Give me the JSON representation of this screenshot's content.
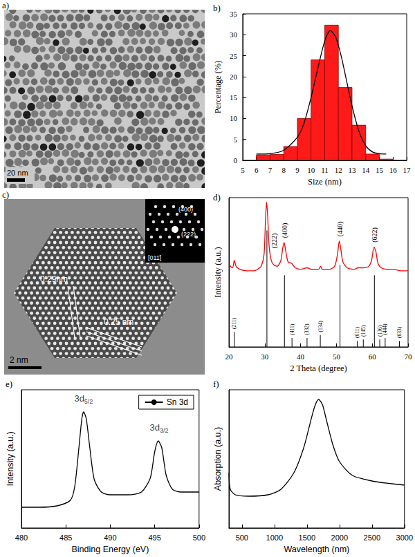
{
  "images": [
    {
      "title": "a)",
      "scale_bar": "20 nm"
    },
    {
      "title": "c)",
      "scale_bar": "2 nm",
      "annotations": [
        "0.29nm",
        "0.25 nm"
      ],
      "inset_labels": [
        "(400)",
        "(222)",
        "[011̄]"
      ]
    }
  ],
  "chart_data": [
    {
      "type": "histogram",
      "title": "b)",
      "x_label": "Size (nm)",
      "y_label": "Percentage (%)",
      "bins": [
        6,
        7,
        8,
        9,
        10,
        11,
        12,
        13,
        14,
        15,
        16
      ],
      "values": [
        1.3,
        1.4,
        3.3,
        10,
        24,
        32.3,
        17.4,
        8.4,
        1.5,
        0.3
      ],
      "color": "#ff1a1a",
      "series": [
        {
          "type": "line",
          "color": "#000000",
          "x": [
            6,
            7,
            8,
            9,
            9.5,
            10,
            10.5,
            11,
            11.4,
            11.8,
            12.2,
            12.6,
            13,
            13.5,
            14,
            14.5,
            15,
            15.5
          ],
          "values": [
            1.5,
            1.6,
            2.4,
            5.5,
            9,
            15,
            22,
            28.5,
            31,
            29.5,
            25,
            19,
            13,
            7,
            3.5,
            2,
            1.6,
            1.5
          ]
        }
      ],
      "xlim": [
        5,
        17
      ],
      "xticks": [
        5,
        6,
        7,
        8,
        9,
        10,
        11,
        12,
        13,
        14,
        15,
        16,
        17
      ],
      "ylim": [
        0,
        35
      ],
      "yticks": [
        0,
        5,
        10,
        15,
        20,
        25,
        30,
        35
      ],
      "grid": false
    },
    {
      "type": "line",
      "title": "d)",
      "x_label": "2 Theta (degree)",
      "y_label": "Intensity (a.u.)",
      "x": [
        20,
        21,
        21.5,
        22,
        23,
        25,
        27,
        28,
        29,
        29.8,
        30.2,
        30.5,
        30.8,
        31.2,
        31.8,
        32.5,
        33.5,
        34.5,
        35,
        35.4,
        35.8,
        36.5,
        37.5,
        38.5,
        40,
        41.8,
        43,
        45,
        45.6,
        46,
        48,
        49.5,
        50.3,
        50.8,
        51.2,
        51.8,
        53,
        55,
        56,
        57.5,
        59,
        59.8,
        60.5,
        61,
        61.6,
        62.5,
        64,
        66,
        68,
        70
      ],
      "values": [
        55,
        53,
        58,
        54,
        52,
        51,
        51,
        52,
        54,
        62,
        85,
        97,
        88,
        68,
        58,
        55,
        54,
        58,
        66,
        70,
        65,
        57,
        56,
        53,
        52,
        53,
        52,
        52,
        54,
        52,
        52,
        54,
        62,
        71,
        66,
        57,
        53,
        52,
        53,
        53,
        54,
        58,
        67,
        64,
        56,
        53,
        52,
        52,
        51,
        51
      ],
      "color": "#ff0000",
      "reference_peaks": [
        {
          "x": 21.5,
          "height": 10,
          "label": "(211)"
        },
        {
          "x": 30.6,
          "height": 78,
          "label": "(222)"
        },
        {
          "x": 35.5,
          "height": 48,
          "label": "(400)"
        },
        {
          "x": 37.6,
          "height": 6,
          "label": "(411)"
        },
        {
          "x": 41.8,
          "height": 6,
          "label": "(332)"
        },
        {
          "x": 45.5,
          "height": 8,
          "label": "(134)"
        },
        {
          "x": 51.0,
          "height": 55,
          "label": "(440)"
        },
        {
          "x": 55.8,
          "height": 4,
          "label": "(611)"
        },
        {
          "x": 57.5,
          "height": 5,
          "label": "(145)"
        },
        {
          "x": 60.6,
          "height": 48,
          "label": "(622)"
        },
        {
          "x": 62.1,
          "height": 5,
          "label": "(136)"
        },
        {
          "x": 63.6,
          "height": 6,
          "label": "(444)"
        },
        {
          "x": 67.6,
          "height": 4,
          "label": "(633)"
        }
      ],
      "xlim": [
        20,
        70
      ],
      "xticks": [
        20,
        30,
        40,
        50,
        60,
        70
      ],
      "ylim": [
        0,
        100
      ],
      "tick_labels": "x",
      "grid": false
    },
    {
      "type": "line",
      "x_label": "Binding Energy (eV)",
      "y_label": "Intensity (a.u.)",
      "title": "e)",
      "series": [
        {
          "name": "Sn 3d",
          "color": "#000000",
          "x": [
            480,
            482,
            484,
            485.5,
            486,
            486.5,
            486.8,
            487,
            487.3,
            487.7,
            488.2,
            489,
            490,
            492,
            493.5,
            494.5,
            495,
            495.4,
            495.8,
            496.3,
            497,
            498,
            500
          ],
          "values": [
            15,
            15,
            16,
            20,
            30,
            60,
            79,
            84,
            79,
            58,
            35,
            26,
            24,
            24,
            26,
            36,
            55,
            63,
            58,
            38,
            28,
            26,
            26
          ]
        }
      ],
      "annotations": [
        {
          "text": "3d",
          "subscript": "5/2",
          "x": 487,
          "y": 87
        },
        {
          "text": "3d",
          "subscript": "3/2",
          "x": 495.5,
          "y": 66
        }
      ],
      "legend": "upper right",
      "xlim": [
        480,
        500
      ],
      "xticks": [
        480,
        485,
        490,
        495,
        500
      ],
      "ylim": [
        0,
        100
      ],
      "tick_labels": "x",
      "grid": false
    },
    {
      "type": "line",
      "title": "f)",
      "x_label": "Wavelength (nm)",
      "y_label": "Absorption (a.u.)",
      "x": [
        300,
        320,
        400,
        600,
        900,
        1100,
        1300,
        1450,
        1550,
        1620,
        1680,
        1740,
        1800,
        1900,
        2000,
        2200,
        2500,
        2800,
        3000
      ],
      "values": [
        40,
        28,
        24,
        23,
        24,
        28,
        40,
        58,
        76,
        88,
        93,
        89,
        78,
        60,
        48,
        38,
        34,
        32,
        31
      ],
      "color": "#000000",
      "xlim": [
        300,
        3000
      ],
      "xticks": [
        500,
        1000,
        1500,
        2000,
        2500,
        3000
      ],
      "ylim": [
        0,
        100
      ],
      "tick_labels": "x",
      "grid": false
    }
  ]
}
